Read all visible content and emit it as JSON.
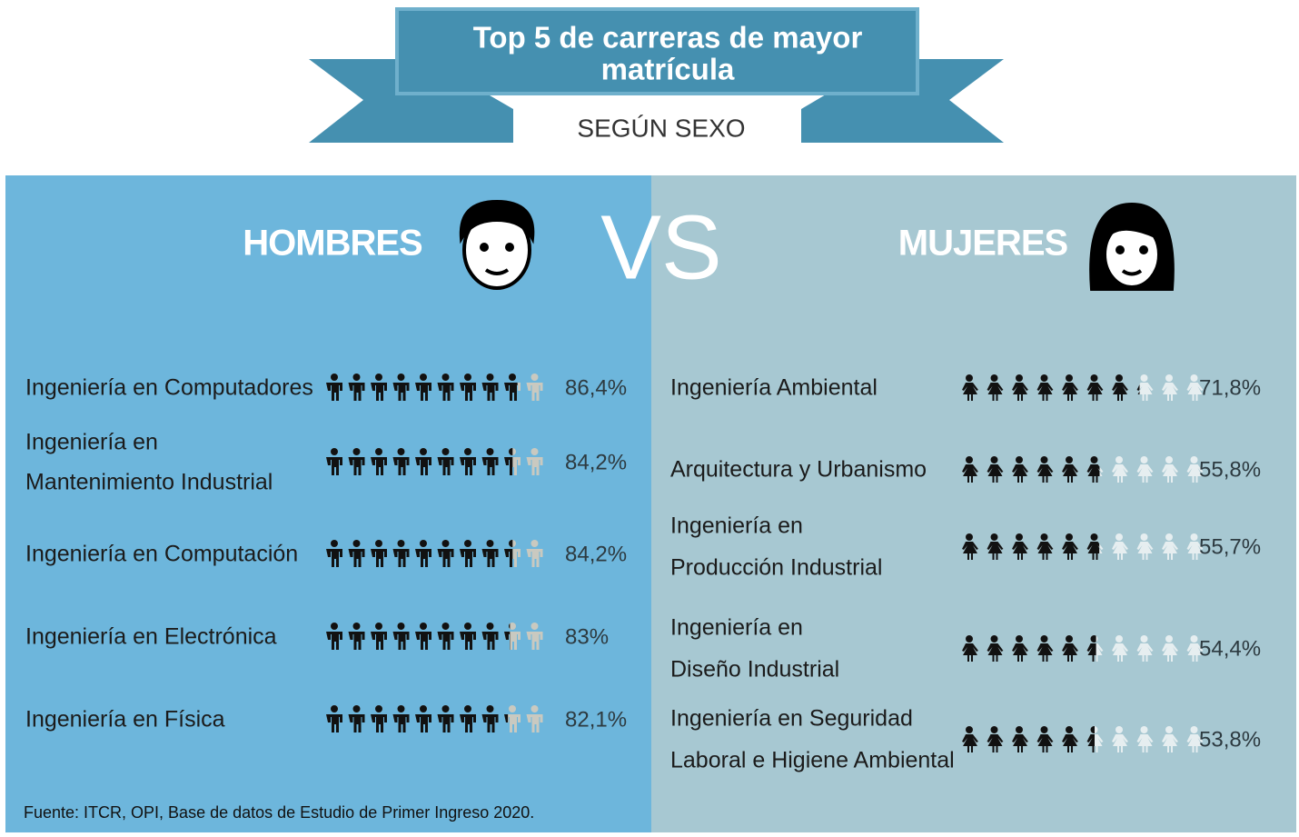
{
  "header": {
    "title": [
      "Top 5 de carreras de  mayor",
      "matrícula"
    ],
    "subtitle": "SEGÚN SEXO"
  },
  "vs": "VS",
  "panels": [
    {
      "title": "HOMBRES",
      "items": [
        {
          "career": [
            "Ingeniería en Computadores"
          ],
          "value": 86.4,
          "label": "86,4%"
        },
        {
          "career": [
            "Ingeniería en",
            "Mantenimiento Industrial"
          ],
          "value": 84.2,
          "label": "84,2%"
        },
        {
          "career": [
            "Ingeniería en Computación"
          ],
          "value": 84.2,
          "label": "84,2%"
        },
        {
          "career": [
            "Ingeniería en Electrónica"
          ],
          "value": 83,
          "label": "83%"
        },
        {
          "career": [
            "Ingeniería en Física"
          ],
          "value": 82.1,
          "label": "82,1%"
        }
      ]
    },
    {
      "title": "MUJERES",
      "items": [
        {
          "career": [
            "Ingeniería Ambiental"
          ],
          "value": 71.8,
          "label": "71,8%"
        },
        {
          "career": [
            "Arquitectura y Urbanismo"
          ],
          "value": 55.8,
          "label": "55,8%"
        },
        {
          "career": [
            "Ingeniería en",
            "Producción Industrial"
          ],
          "value": 55.7,
          "label": "55,7%"
        },
        {
          "career": [
            "Ingeniería en",
            " Diseño Industrial"
          ],
          "value": 54.4,
          "label": "54,4%"
        },
        {
          "career": [
            "Ingeniería en Seguridad",
            "Laboral e Higiene Ambiental"
          ],
          "value": 53.8,
          "label": "53,8%"
        }
      ]
    }
  ],
  "source": "Fuente: ITCR, OPI, Base de datos de Estudio de Primer Ingreso 2020."
}
